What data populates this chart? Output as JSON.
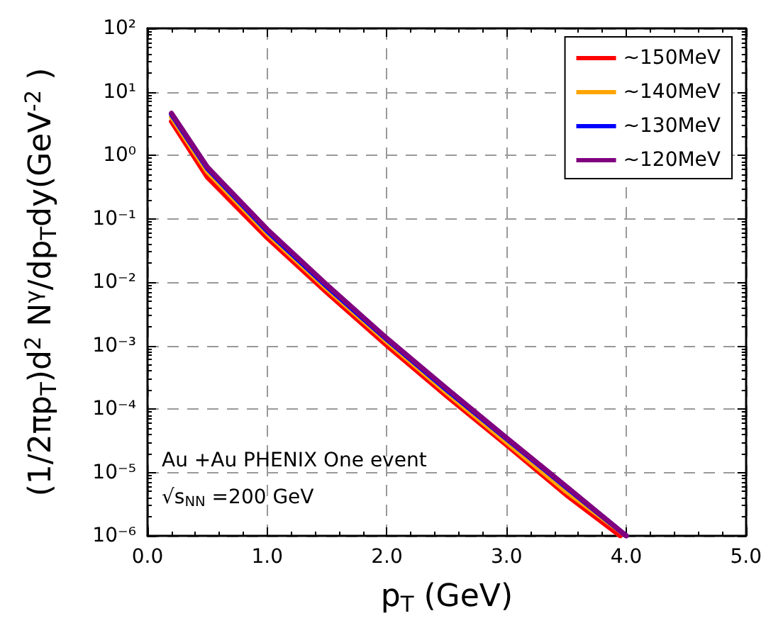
{
  "chart_data": {
    "type": "line",
    "xlabel": "p$_{T}$ (GeV)",
    "ylabel": "(1/2πp$_{T}$)d$^{2}$ N$^{γ}$/dp$_{T}$dy(GeV$^{-2}$ )",
    "x": [
      0.2,
      0.5,
      1.0,
      1.5,
      2.0,
      2.5,
      3.0,
      3.5,
      4.0
    ],
    "series": [
      {
        "name": "~150MeV",
        "color": "#ff0000",
        "x": [
          0.2,
          0.5,
          1.0,
          1.5,
          2.0,
          2.5,
          3.0,
          3.5,
          3.95
        ],
        "values": [
          3.4,
          0.45,
          0.05,
          0.0068,
          0.001,
          0.00016,
          2.7e-05,
          4.4e-06,
          1e-06
        ]
      },
      {
        "name": "~140MeV",
        "color": "#ffa500",
        "values": [
          4.0,
          0.55,
          0.058,
          0.0078,
          0.00115,
          0.00018,
          3e-05,
          5e-06,
          1e-06
        ]
      },
      {
        "name": "~130MeV",
        "color": "#0000ff",
        "values": [
          4.4,
          0.62,
          0.064,
          0.0085,
          0.00125,
          0.0002,
          3.4e-05,
          5.8e-06,
          1e-06
        ]
      },
      {
        "name": "~120MeV",
        "color": "#800080",
        "values": [
          4.6,
          0.65,
          0.068,
          0.009,
          0.0013,
          0.00021,
          3.5e-05,
          6e-06,
          1e-06
        ]
      }
    ],
    "xlim": [
      0,
      5
    ],
    "xticks": [
      {
        "value": 0,
        "label": "0.0"
      },
      {
        "value": 1,
        "label": "1.0"
      },
      {
        "value": 2,
        "label": "2.0"
      },
      {
        "value": 3,
        "label": "3.0"
      },
      {
        "value": 4,
        "label": "4.0"
      },
      {
        "value": 5,
        "label": "5.0"
      }
    ],
    "ylim": [
      1e-06,
      100
    ],
    "yticks": [
      {
        "value": 1e-06,
        "label": "10⁻⁶"
      },
      {
        "value": 1e-05,
        "label": "10⁻⁵"
      },
      {
        "value": 0.0001,
        "label": "10⁻⁴"
      },
      {
        "value": 0.001,
        "label": "10⁻³"
      },
      {
        "value": 0.01,
        "label": "10⁻²"
      },
      {
        "value": 0.1,
        "label": "10⁻¹"
      },
      {
        "value": 1,
        "label": "10⁰"
      },
      {
        "value": 10,
        "label": "10¹"
      },
      {
        "value": 100,
        "label": "10²"
      }
    ],
    "log": "y",
    "grid": true,
    "legend": "top right",
    "marker": "none",
    "line_style": "solid",
    "annotations": [
      "Au +Au PHENIX One event",
      "√s$_{NN}$ =200 GeV"
    ]
  }
}
